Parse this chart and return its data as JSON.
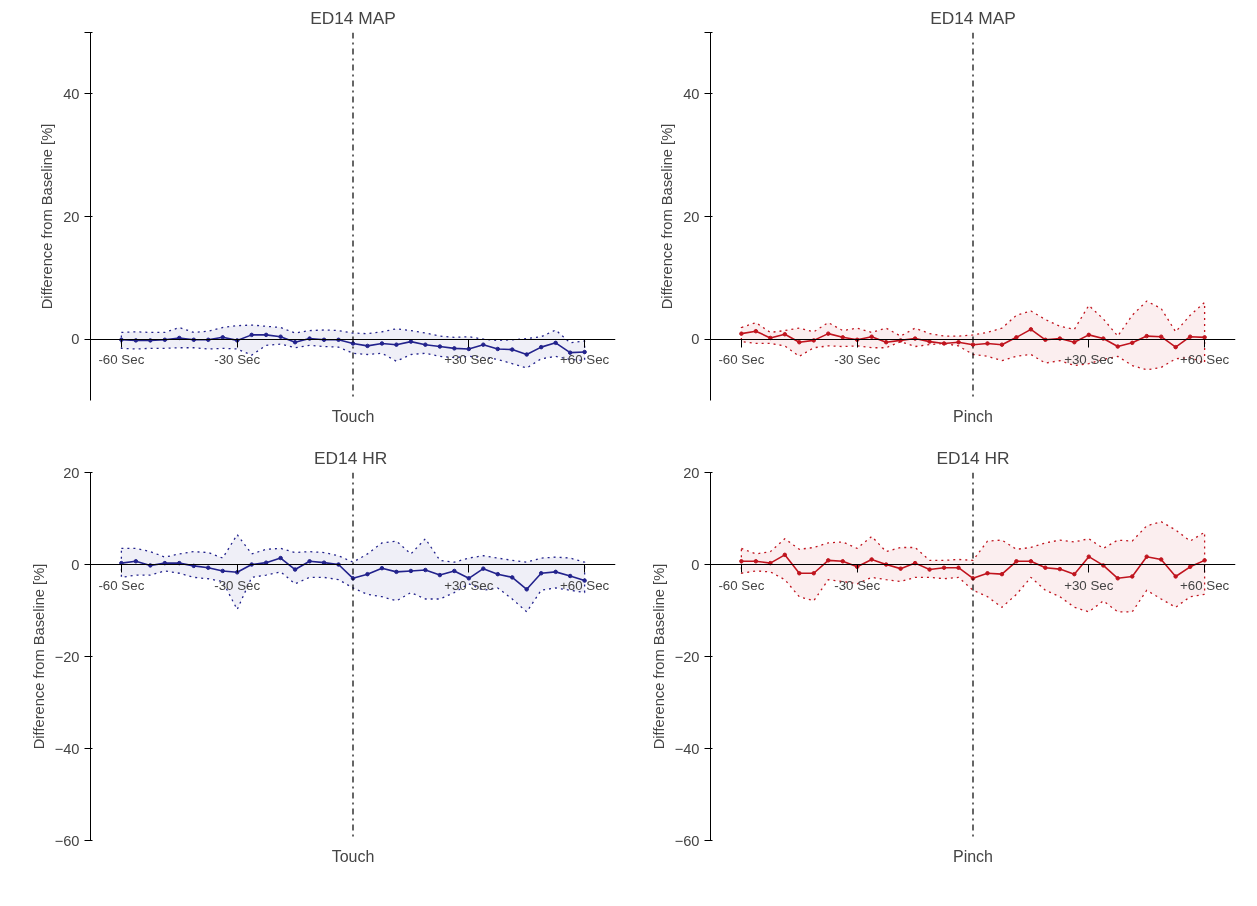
{
  "chart_data": [
    {
      "type": "line",
      "title": "ED14 MAP",
      "xlabel": "Touch",
      "ylabel": "Difference from Baseline [%]",
      "x": [
        -60,
        -56.25,
        -52.5,
        -48.75,
        -45,
        -41.25,
        -37.5,
        -33.75,
        -30,
        -26.25,
        -22.5,
        -18.75,
        -15,
        -11.25,
        -7.5,
        -3.75,
        0,
        3.75,
        7.5,
        11.25,
        15,
        18.75,
        22.5,
        26.25,
        30,
        33.75,
        37.5,
        41.25,
        45,
        48.75,
        52.5,
        56.25,
        60
      ],
      "xlim": [
        -68,
        68
      ],
      "xticks": [
        {
          "value": -60,
          "label": "-60 Sec"
        },
        {
          "value": -30,
          "label": "-30 Sec"
        },
        {
          "value": 30,
          "label": "+30 Sec"
        },
        {
          "value": 60,
          "label": "+60 Sec"
        }
      ],
      "ylim": [
        -10,
        50
      ],
      "yticks": [
        0,
        20,
        40,
        {
          "value": 50,
          "label": null
        }
      ],
      "grid": false,
      "marker": "circle",
      "line_style": "solid",
      "series": [
        {
          "color": "#22228c",
          "values": [
            -0.1,
            -0.2,
            -0.2,
            -0.1,
            0.2,
            -0.1,
            -0.1,
            0.3,
            -0.2,
            0.7,
            0.7,
            0.4,
            -0.5,
            0.1,
            -0.1,
            -0.1,
            -0.7,
            -1.1,
            -0.7,
            -0.9,
            -0.4,
            -0.9,
            -1.2,
            -1.5,
            -1.6,
            -0.9,
            -1.6,
            -1.7,
            -2.5,
            -1.3,
            -0.6,
            -2.2,
            -2.1
          ],
          "upper": [
            1.1,
            1.2,
            1.1,
            1.1,
            1.9,
            1.1,
            1.3,
            1.9,
            2.2,
            2.3,
            2.1,
            1.9,
            1.0,
            1.4,
            1.5,
            1.4,
            1.0,
            0.9,
            1.2,
            1.7,
            1.4,
            1.0,
            0.5,
            0.3,
            0.4,
            0.0,
            -0.2,
            -0.1,
            0.1,
            0.4,
            1.5,
            -0.6,
            -0.3
          ],
          "lower": [
            -1.5,
            -1.6,
            -1.5,
            -1.5,
            -1.4,
            -1.4,
            -1.6,
            -1.5,
            -1.6,
            -2.6,
            -1.0,
            -0.8,
            -1.4,
            -1.0,
            -1.2,
            -1.3,
            -2.3,
            -2.5,
            -2.3,
            -3.6,
            -2.5,
            -2.3,
            -2.8,
            -3.0,
            -2.8,
            -3.0,
            -3.3,
            -4.0,
            -4.7,
            -3.2,
            -2.8,
            -3.3,
            -3.5
          ]
        }
      ],
      "ref_lines": [
        {
          "axis": "x",
          "value": 0,
          "color": "#000000",
          "line_style": "dashdot"
        }
      ]
    },
    {
      "type": "line",
      "title": "ED14 MAP",
      "xlabel": "Pinch",
      "ylabel": "Difference from Baseline [%]",
      "x": [
        -60,
        -56.25,
        -52.5,
        -48.75,
        -45,
        -41.25,
        -37.5,
        -33.75,
        -30,
        -26.25,
        -22.5,
        -18.75,
        -15,
        -11.25,
        -7.5,
        -3.75,
        0,
        3.75,
        7.5,
        11.25,
        15,
        18.75,
        22.5,
        26.25,
        30,
        33.75,
        37.5,
        41.25,
        45,
        48.75,
        52.5,
        56.25,
        60
      ],
      "xlim": [
        -68,
        68
      ],
      "xticks": [
        {
          "value": -60,
          "label": "-60 Sec"
        },
        {
          "value": -30,
          "label": "-30 Sec"
        },
        {
          "value": 30,
          "label": "+30 Sec"
        },
        {
          "value": 60,
          "label": "+60 Sec"
        }
      ],
      "ylim": [
        -10,
        50
      ],
      "yticks": [
        0,
        20,
        40,
        {
          "value": 50,
          "label": null
        }
      ],
      "grid": false,
      "marker": "circle",
      "line_style": "solid",
      "series": [
        {
          "color": "#c0141e",
          "values": [
            0.9,
            1.3,
            0.2,
            0.8,
            -0.5,
            -0.2,
            0.9,
            0.3,
            -0.1,
            0.4,
            -0.5,
            -0.2,
            0.1,
            -0.4,
            -0.7,
            -0.5,
            -0.9,
            -0.7,
            -0.9,
            0.3,
            1.6,
            -0.1,
            0.1,
            -0.5,
            0.7,
            0.1,
            -1.2,
            -0.6,
            0.5,
            0.4,
            -1.3,
            0.4,
            0.3
          ],
          "upper": [
            1.9,
            2.7,
            1.1,
            1.4,
            1.8,
            1.2,
            2.7,
            1.4,
            1.8,
            1.1,
            1.8,
            0.5,
            1.8,
            0.9,
            0.5,
            0.5,
            0.7,
            1.1,
            1.8,
            3.9,
            4.6,
            3.2,
            2.1,
            1.6,
            5.5,
            3.3,
            0.5,
            3.9,
            6.2,
            5.0,
            1.2,
            3.9,
            6.0
          ],
          "lower": [
            -0.4,
            -0.7,
            -0.7,
            -1.1,
            -2.8,
            -1.4,
            -1.1,
            -1.2,
            -1.1,
            -1.4,
            -1.4,
            -0.4,
            -1.2,
            -0.9,
            -0.7,
            -1.1,
            -2.5,
            -2.8,
            -3.5,
            -2.8,
            -2.5,
            -3.9,
            -3.5,
            -4.3,
            -4.0,
            -3.3,
            -2.8,
            -4.3,
            -5.0,
            -4.6,
            -3.2,
            -3.0,
            -3.9
          ]
        }
      ],
      "ref_lines": [
        {
          "axis": "x",
          "value": 0,
          "color": "#000000",
          "line_style": "dashdot"
        }
      ]
    },
    {
      "type": "line",
      "title": "ED14  HR",
      "xlabel": "Touch",
      "ylabel": "Difference from Baseline [%]",
      "x": [
        -60,
        -56.25,
        -52.5,
        -48.75,
        -45,
        -41.25,
        -37.5,
        -33.75,
        -30,
        -26.25,
        -22.5,
        -18.75,
        -15,
        -11.25,
        -7.5,
        -3.75,
        0,
        3.75,
        7.5,
        11.25,
        15,
        18.75,
        22.5,
        26.25,
        30,
        33.75,
        37.5,
        41.25,
        45,
        48.75,
        52.5,
        56.25,
        60
      ],
      "xlim": [
        -68,
        68
      ],
      "xticks": [
        {
          "value": -60,
          "label": "-60 Sec"
        },
        {
          "value": -30,
          "label": "-30 Sec"
        },
        {
          "value": 30,
          "label": "+30 Sec"
        },
        {
          "value": 60,
          "label": "+60 Sec"
        }
      ],
      "ylim": [
        -60,
        20
      ],
      "yticks": [
        -60,
        -40,
        -20,
        0,
        20
      ],
      "grid": false,
      "marker": "circle",
      "line_style": "solid",
      "series": [
        {
          "color": "#22228c",
          "values": [
            0.3,
            0.7,
            -0.2,
            0.3,
            0.3,
            -0.3,
            -0.7,
            -1.4,
            -1.7,
            0,
            0.4,
            1.4,
            -1.1,
            0.7,
            0.4,
            0,
            -3.0,
            -2.1,
            -0.8,
            -1.6,
            -1.4,
            -1.2,
            -2.3,
            -1.4,
            -3.0,
            -0.9,
            -2.1,
            -2.8,
            -5.4,
            -1.9,
            -1.6,
            -2.5,
            -3.5
          ],
          "upper": [
            3.5,
            3.5,
            2.8,
            1.6,
            2.3,
            2.8,
            2.6,
            1.4,
            6.5,
            2.3,
            3.3,
            3.5,
            2.6,
            2.8,
            2.6,
            1.9,
            0.5,
            2.3,
            4.7,
            5.1,
            2.3,
            5.6,
            0.9,
            0.5,
            1.4,
            1.9,
            1.4,
            0.9,
            0.5,
            1.4,
            1.6,
            1.4,
            0.5
          ],
          "lower": [
            -2.8,
            -2.3,
            -2.3,
            -1.4,
            -1.9,
            -2.8,
            -3.1,
            -3.7,
            -9.8,
            -2.8,
            -2.3,
            -1.6,
            -4.2,
            -2.8,
            -2.8,
            -3.3,
            -5.1,
            -6.5,
            -7.0,
            -7.9,
            -6.1,
            -7.5,
            -7.5,
            -6.1,
            -4.2,
            -5.6,
            -5.1,
            -7.5,
            -10.3,
            -5.6,
            -5.1,
            -5.6,
            -6.1
          ]
        }
      ],
      "ref_lines": [
        {
          "axis": "x",
          "value": 0,
          "color": "#000000",
          "line_style": "dashdot"
        }
      ]
    },
    {
      "type": "line",
      "title": "ED14 HR",
      "xlabel": "Pinch",
      "ylabel": "Difference from Baseline [%]",
      "x": [
        -60,
        -56.25,
        -52.5,
        -48.75,
        -45,
        -41.25,
        -37.5,
        -33.75,
        -30,
        -26.25,
        -22.5,
        -18.75,
        -15,
        -11.25,
        -7.5,
        -3.75,
        0,
        3.75,
        7.5,
        11.25,
        15,
        18.75,
        22.5,
        26.25,
        30,
        33.75,
        37.5,
        41.25,
        45,
        48.75,
        52.5,
        56.25,
        60
      ],
      "xlim": [
        -68,
        68
      ],
      "xticks": [
        {
          "value": -60,
          "label": "-60 Sec"
        },
        {
          "value": -30,
          "label": "-30 Sec"
        },
        {
          "value": 30,
          "label": "+30 Sec"
        },
        {
          "value": 60,
          "label": "+60 Sec"
        }
      ],
      "ylim": [
        -60,
        20
      ],
      "yticks": [
        -60,
        -40,
        -20,
        0,
        20
      ],
      "grid": false,
      "marker": "circle",
      "line_style": "solid",
      "series": [
        {
          "color": "#c0141e",
          "values": [
            0.7,
            0.7,
            0.3,
            2.1,
            -1.9,
            -1.9,
            0.9,
            0.7,
            -0.5,
            1.1,
            0,
            -0.9,
            0.3,
            -1.1,
            -0.7,
            -0.7,
            -3.0,
            -1.9,
            -2.1,
            0.7,
            0.7,
            -0.7,
            -1.0,
            -2.1,
            1.7,
            -0.2,
            -3.0,
            -2.6,
            1.7,
            1.1,
            -2.6,
            -0.5,
            0.9
          ],
          "upper": [
            3.5,
            2.3,
            2.8,
            5.6,
            3.3,
            3.7,
            4.7,
            4.9,
            3.5,
            6.1,
            2.8,
            3.7,
            3.7,
            0.9,
            0.9,
            1.1,
            0.9,
            5.1,
            5.3,
            3.3,
            3.7,
            4.7,
            5.3,
            4.9,
            5.6,
            3.5,
            5.3,
            5.1,
            8.4,
            9.3,
            7.5,
            5.1,
            7.0
          ],
          "lower": [
            -1.9,
            -1.4,
            -1.6,
            -3.3,
            -7.0,
            -7.9,
            -3.3,
            -3.7,
            -4.2,
            -2.8,
            -3.3,
            -3.7,
            -2.8,
            -2.8,
            -3.1,
            -2.8,
            -5.6,
            -7.0,
            -9.3,
            -6.5,
            -2.8,
            -5.6,
            -7.0,
            -9.3,
            -10.3,
            -7.9,
            -10.3,
            -10.3,
            -5.6,
            -7.5,
            -9.3,
            -7.0,
            -6.5
          ]
        }
      ],
      "ref_lines": [
        {
          "axis": "x",
          "value": 0,
          "color": "#000000",
          "line_style": "dashdot"
        }
      ]
    }
  ]
}
